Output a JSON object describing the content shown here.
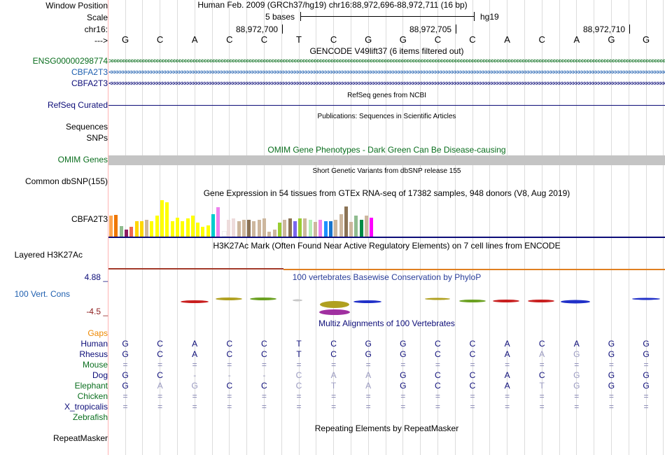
{
  "header": {
    "window_position_label": "Window Position",
    "scale_label": "Scale",
    "chrom_label": "chr16:",
    "arrow_label": "--->",
    "assembly_position": "Human Feb. 2009 (GRCh37/hg19)   chr16:88,972,696-88,972,711 (16 bp)",
    "scale_text": "5 bases",
    "scale_db": "hg19",
    "coords": [
      "88,972,700",
      "88,972,705",
      "88,972,710"
    ],
    "bases": [
      "G",
      "C",
      "A",
      "C",
      "C",
      "T",
      "C",
      "G",
      "G",
      "C",
      "C",
      "A",
      "C",
      "A",
      "G",
      "G"
    ]
  },
  "tracks": {
    "gencode": {
      "title": "GENCODE V49lift37 (6 items filtered out)",
      "items": [
        {
          "label": "ENSG00000298774",
          "color": "#0a6e1e",
          "direction": ">"
        },
        {
          "label": "CBFA2T3",
          "color": "#2060b0",
          "direction": "<"
        },
        {
          "label": "CBFA2T3",
          "color": "#0c0c78",
          "direction": "<"
        }
      ]
    },
    "refseq": {
      "title": "RefSeq genes from NCBI",
      "label": "RefSeq Curated",
      "color": "#0c0c78"
    },
    "publications": {
      "title": "Publications: Sequences in Scientific Articles",
      "labels": [
        "Sequences",
        "SNPs"
      ]
    },
    "omim": {
      "title": "OMIM Gene Phenotypes - Dark Green Can Be Disease-causing",
      "label": "OMIM Genes",
      "color": "#0a6e1e"
    },
    "dbsnp": {
      "title": "Short Genetic Variants from dbSNP release 155",
      "label": "Common dbSNP(155)"
    },
    "gtex": {
      "title": "Gene Expression in 54 tissues from GTEx RNA-seq of 17382 samples, 948 donors (V8, Aug 2019)",
      "label": "CBFA2T3"
    },
    "h3k27ac": {
      "title": "H3K27Ac Mark (Often Found Near Active Regulatory Elements) on 7 cell lines from ENCODE",
      "label": "Layered H3K27Ac"
    },
    "phylop": {
      "title": "100 vertebrates Basewise Conservation by PhyloP",
      "label": "100 Vert. Cons",
      "max": "4.88 _",
      "min": "-4.5 _"
    },
    "multiz": {
      "title": "Multiz Alignments of 100 Vertebrates",
      "gaps_label": "Gaps",
      "species": [
        {
          "name": "Human",
          "color": "#0c0c78",
          "bases": [
            "G",
            "C",
            "A",
            "C",
            "C",
            "T",
            "C",
            "G",
            "G",
            "C",
            "C",
            "A",
            "C",
            "A",
            "G",
            "G"
          ]
        },
        {
          "name": "Rhesus",
          "color": "#0c0c78",
          "bases": [
            "G",
            "C",
            "A",
            "C",
            "C",
            "T",
            "C",
            "G",
            "G",
            "C",
            "C",
            "A",
            "A",
            "G",
            "G",
            "G"
          ]
        },
        {
          "name": "Mouse",
          "color": "#0a6e1e",
          "bases": [
            "=",
            "=",
            "=",
            "=",
            "=",
            "=",
            "=",
            "=",
            "=",
            "=",
            "=",
            "=",
            "=",
            "=",
            "=",
            "="
          ]
        },
        {
          "name": "Dog",
          "color": "#0c0c78",
          "bases": [
            "G",
            "C",
            "-",
            "-",
            "-",
            "C",
            "A",
            "A",
            "G",
            "C",
            "C",
            "A",
            "C",
            "G",
            "G",
            "G"
          ]
        },
        {
          "name": "Elephant",
          "color": "#0a6e1e",
          "bases": [
            "G",
            "A",
            "G",
            "C",
            "C",
            "C",
            "T",
            "A",
            "G",
            "C",
            "C",
            "A",
            "T",
            "G",
            "G",
            "G"
          ]
        },
        {
          "name": "Chicken",
          "color": "#0a6e1e",
          "bases": [
            "=",
            "=",
            "=",
            "=",
            "=",
            "=",
            "=",
            "=",
            "=",
            "=",
            "=",
            "=",
            "=",
            "=",
            "=",
            "="
          ]
        },
        {
          "name": "X_tropicalis",
          "color": "#0c0c78",
          "bases": [
            "=",
            "=",
            "=",
            "=",
            "=",
            "=",
            "=",
            "=",
            "=",
            "=",
            "=",
            "=",
            "=",
            "=",
            "=",
            "="
          ]
        },
        {
          "name": "Zebrafish",
          "color": "#0a6e1e",
          "bases": [
            "",
            "",
            "",
            "",
            "",
            "",
            "",
            "",
            "",
            "",
            "",
            "",
            "",
            "",
            "",
            ""
          ]
        }
      ]
    },
    "repeatmasker": {
      "title": "Repeating Elements by RepeatMasker",
      "label": "RepeatMasker"
    }
  },
  "gtex_bar_colors": [
    "#ffa54f",
    "#ee7600",
    "#8fbc8f",
    "#8b1c62",
    "#ee6a50",
    "#ffd700",
    "#ffd700",
    "#cdb79e",
    "#ffff00",
    "#ffff00",
    "#ffff00",
    "#ffff00",
    "#ffff00",
    "#ffff00",
    "#ffff00",
    "#ffff00",
    "#ffff00",
    "#ffff00",
    "#ffff00",
    "#ffff00",
    "#00cdcd",
    "#ee82ee",
    "#ffffff",
    "#eedcdc",
    "#eedcdc",
    "#cdb79e",
    "#cdb79e",
    "#8b7355",
    "#cdb79e",
    "#cdb79e",
    "#cdb79e",
    "#cdb79e",
    "#cdb79e",
    "#9acd32",
    "#cdb79e",
    "#8b7355",
    "#7a67ee",
    "#9acd32",
    "#cdb79e",
    "#b4eeb4",
    "#cdb79e",
    "#ee82ee",
    "#1e90ff",
    "#1874cd",
    "#cdb79e",
    "#cdb79e",
    "#8b7355",
    "#cdb79e",
    "#8fbc8f",
    "#008b45",
    "#cdb79e",
    "#ff00ff"
  ]
}
